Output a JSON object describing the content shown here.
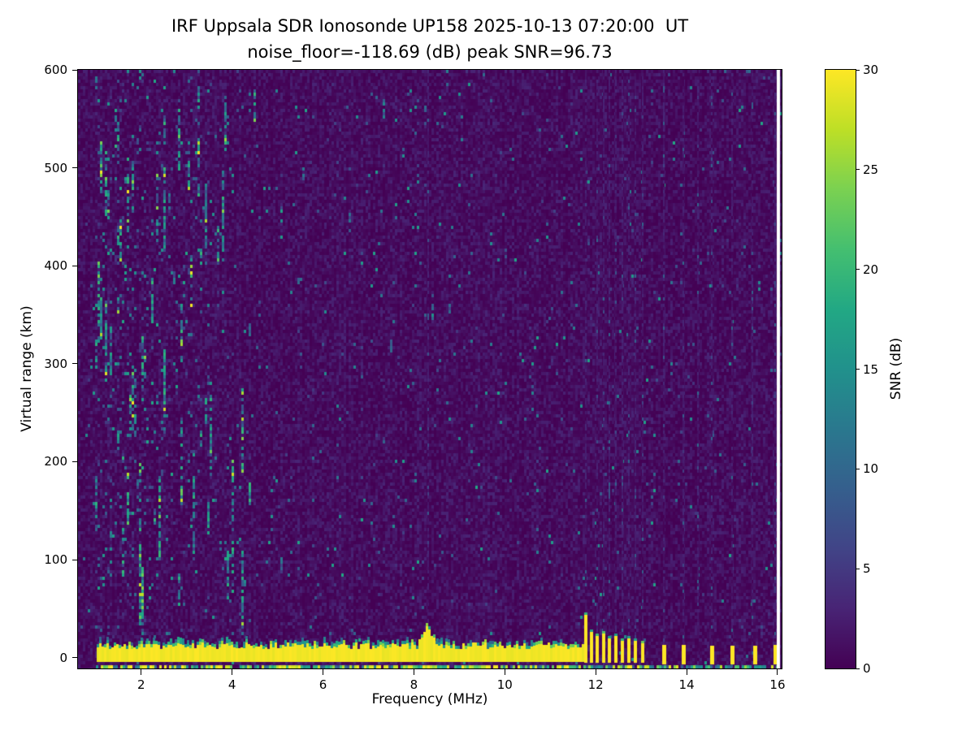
{
  "chart_data": {
    "type": "heatmap",
    "title": "IRF Uppsala SDR Ionosonde UP158 2025-10-13 07:20:00  UT",
    "subtitle": "noise_floor=-118.69 (dB) peak SNR=96.73",
    "station": "UP158",
    "timestamp_ut": "2025-10-13 07:20:00",
    "noise_floor_db": -118.69,
    "peak_snr_db": 96.73,
    "xlabel": "Frequency (MHz)",
    "ylabel": "Virtual range (km)",
    "xlim": [
      0.61,
      16.09
    ],
    "ylim": [
      -11,
      600
    ],
    "xticks": [
      2,
      4,
      6,
      8,
      10,
      12,
      14,
      16
    ],
    "yticks": [
      0,
      100,
      200,
      300,
      400,
      500,
      600
    ],
    "grid": false,
    "colorbar": {
      "label": "SNR (dB)",
      "min": 0,
      "max": 30,
      "ticks": [
        0,
        5,
        10,
        15,
        20,
        25,
        30
      ],
      "colormap": "viridis",
      "stops": [
        "#440154",
        "#482475",
        "#414487",
        "#355f8d",
        "#2a788e",
        "#21918c",
        "#22a884",
        "#44bf70",
        "#7ad151",
        "#bddf26",
        "#fde725"
      ]
    },
    "features": {
      "seed": 42,
      "background_snr_db": [
        0,
        3
      ],
      "ground_return_band": {
        "freq_start": 1.02,
        "freq_end": 11.72,
        "range_center_km": 4,
        "half_width_km": 8,
        "snr_db": 30,
        "bulge_freq": [
          8.05,
          8.5
        ],
        "bulge_extra_km": 20
      },
      "bottom_echo_line": {
        "range_km": -9,
        "freq_start": 1.0,
        "freq_end": 15.99
      },
      "pulse_train": [
        {
          "f": 11.78,
          "top_km": 44
        },
        {
          "f": 11.9,
          "top_km": 26
        },
        {
          "f": 12.03,
          "top_km": 22
        },
        {
          "f": 12.17,
          "top_km": 25
        },
        {
          "f": 12.3,
          "top_km": 20
        },
        {
          "f": 12.44,
          "top_km": 22
        },
        {
          "f": 12.58,
          "top_km": 17
        },
        {
          "f": 12.73,
          "top_km": 20
        },
        {
          "f": 12.88,
          "top_km": 17
        },
        {
          "f": 13.03,
          "top_km": 15
        }
      ],
      "isolated_pulses": [
        {
          "f": 13.5,
          "top_km": 13
        },
        {
          "f": 13.93,
          "top_km": 13
        },
        {
          "f": 14.55,
          "top_km": 12
        },
        {
          "f": 15.0,
          "top_km": 12
        },
        {
          "f": 15.5,
          "top_km": 12
        },
        {
          "f": 15.95,
          "top_km": 13
        }
      ],
      "rfi_stripes": [
        8.32,
        11.78,
        12.03,
        12.17,
        12.3,
        12.44,
        12.58,
        12.73,
        12.88,
        13.03,
        13.5,
        13.93,
        14.25,
        14.55,
        15.0,
        15.45,
        15.95
      ],
      "noise_streaks": {
        "freq_start": 1.0,
        "freq_end": 4.5,
        "count": 70
      },
      "sparse_streaks_count": 26,
      "nodata_column": {
        "freq_start": 15.99,
        "freq_end": 16.06
      }
    }
  }
}
